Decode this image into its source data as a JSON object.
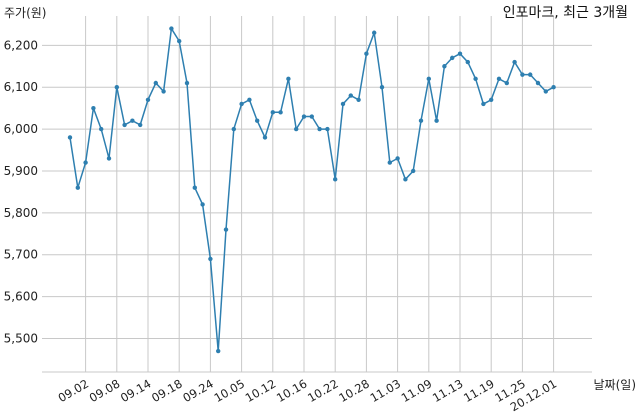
{
  "chart_data": {
    "type": "line",
    "title": "인포마크, 최근 3개월",
    "ylabel": "주가(원)",
    "xlabel": "날짜(일)",
    "ylim": [
      5420,
      6270
    ],
    "yticks": [
      "5,500",
      "5,600",
      "5,700",
      "5,800",
      "5,900",
      "6,000",
      "6,100",
      "6,200"
    ],
    "ytick_values": [
      5500,
      5600,
      5700,
      5800,
      5900,
      6000,
      6100,
      6200
    ],
    "xtick_labels": [
      "09.02",
      "09.08",
      "09.14",
      "09.18",
      "09.24",
      "10.05",
      "10.12",
      "10.16",
      "10.22",
      "10.28",
      "11.03",
      "11.09",
      "11.13",
      "11.19",
      "11.25",
      "20.12.01"
    ],
    "xtick_index": [
      2,
      6,
      10,
      14,
      18,
      22,
      26,
      30,
      34,
      38,
      42,
      46,
      50,
      54,
      58,
      62
    ],
    "grid": true,
    "color": "#2e7fb0",
    "series": [
      {
        "values": [
          5980,
          5860,
          5920,
          6050,
          6000,
          5930,
          6100,
          6010,
          6020,
          6010,
          6070,
          6110,
          6090,
          6240,
          6210,
          6110,
          5860,
          5820,
          5690,
          5470,
          5760,
          6000,
          6060,
          6070,
          6020,
          5980,
          6040,
          6040,
          6120,
          6000,
          6030,
          6030,
          6000,
          6000,
          5880,
          6060,
          6080,
          6070,
          6180,
          6230,
          6100,
          5920,
          5930,
          5880,
          5900,
          6020,
          6120,
          6020,
          6150,
          6170,
          6180,
          6160,
          6120,
          6060,
          6070,
          6120,
          6110,
          6160,
          6130,
          6130,
          6110,
          6090,
          6100
        ]
      }
    ]
  }
}
